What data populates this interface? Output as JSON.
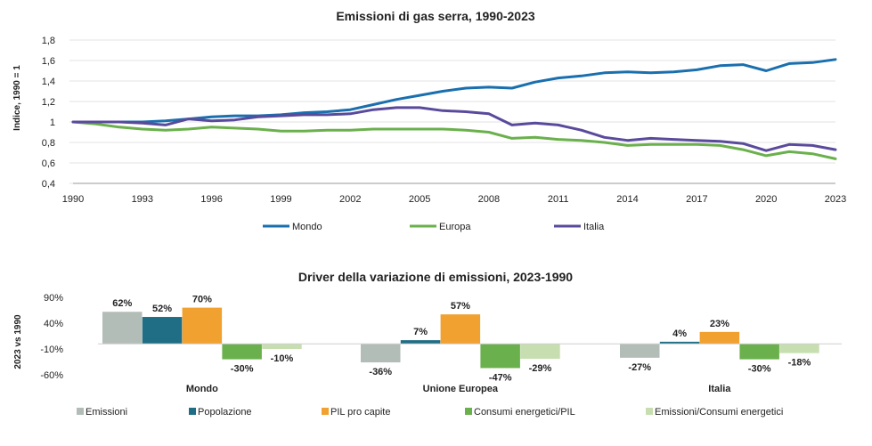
{
  "chart_data": [
    {
      "type": "line",
      "title": "Emissioni di gas serra, 1990-2023",
      "ylabel": "Indice, 1990 = 1",
      "xlabel": "",
      "ylim": [
        0.4,
        1.8
      ],
      "yticks": [
        "0,4",
        "0,6",
        "0,8",
        "1",
        "1,2",
        "1,4",
        "1,6",
        "1,8"
      ],
      "ytick_values": [
        0.4,
        0.6,
        0.8,
        1.0,
        1.2,
        1.4,
        1.6,
        1.8
      ],
      "xticks": [
        "1990",
        "1993",
        "1996",
        "1999",
        "2002",
        "2005",
        "2008",
        "2011",
        "2014",
        "2017",
        "2020",
        "2023"
      ],
      "x": [
        1990,
        1991,
        1992,
        1993,
        1994,
        1995,
        1996,
        1997,
        1998,
        1999,
        2000,
        2001,
        2002,
        2003,
        2004,
        2005,
        2006,
        2007,
        2008,
        2009,
        2010,
        2011,
        2012,
        2013,
        2014,
        2015,
        2016,
        2017,
        2018,
        2019,
        2020,
        2021,
        2022,
        2023
      ],
      "series": [
        {
          "name": "Mondo",
          "color": "#1a6fae",
          "values": [
            1.0,
            1.0,
            1.0,
            1.0,
            1.01,
            1.03,
            1.05,
            1.06,
            1.06,
            1.07,
            1.09,
            1.1,
            1.12,
            1.17,
            1.22,
            1.26,
            1.3,
            1.33,
            1.34,
            1.33,
            1.39,
            1.43,
            1.45,
            1.48,
            1.49,
            1.48,
            1.49,
            1.51,
            1.55,
            1.56,
            1.5,
            1.57,
            1.58,
            1.61
          ]
        },
        {
          "name": "Europa",
          "color": "#6ab04c",
          "values": [
            1.0,
            0.98,
            0.95,
            0.93,
            0.92,
            0.93,
            0.95,
            0.94,
            0.93,
            0.91,
            0.91,
            0.92,
            0.92,
            0.93,
            0.93,
            0.93,
            0.93,
            0.92,
            0.9,
            0.84,
            0.85,
            0.83,
            0.82,
            0.8,
            0.77,
            0.78,
            0.78,
            0.78,
            0.77,
            0.73,
            0.67,
            0.71,
            0.69,
            0.64
          ]
        },
        {
          "name": "Italia",
          "color": "#5a4a9c",
          "values": [
            1.0,
            1.0,
            1.0,
            0.99,
            0.97,
            1.03,
            1.01,
            1.02,
            1.05,
            1.06,
            1.07,
            1.07,
            1.08,
            1.12,
            1.14,
            1.14,
            1.11,
            1.1,
            1.08,
            0.97,
            0.99,
            0.97,
            0.92,
            0.85,
            0.82,
            0.84,
            0.83,
            0.82,
            0.81,
            0.79,
            0.72,
            0.78,
            0.77,
            0.73
          ]
        }
      ],
      "legend": "bottom"
    },
    {
      "type": "bar",
      "title": "Driver della variazione di emissioni, 2023-1990",
      "ylabel": "2023 vs 1990",
      "ylim": [
        -60,
        90
      ],
      "yticks": [
        "90%",
        "40%",
        "-10%",
        "-60%"
      ],
      "ytick_values": [
        90,
        40,
        -10,
        -60
      ],
      "categories": [
        "Mondo",
        "Unione Europea",
        "Italia"
      ],
      "series": [
        {
          "name": "Emissioni",
          "color": "#b3bdb7",
          "values": [
            62,
            -36,
            -27
          ],
          "labels": [
            "62%",
            "-36%",
            "-27%"
          ]
        },
        {
          "name": "Popolazione",
          "color": "#1f6e85",
          "values": [
            52,
            7,
            4
          ],
          "labels": [
            "52%",
            "7%",
            "4%"
          ]
        },
        {
          "name": "PIL pro capite",
          "color": "#f0a12f",
          "values": [
            70,
            57,
            23
          ],
          "labels": [
            "70%",
            "57%",
            "23%"
          ]
        },
        {
          "name": "Consumi energetici/PIL",
          "color": "#6ab04c",
          "values": [
            -30,
            -47,
            -30
          ],
          "labels": [
            "-30%",
            "-47%",
            "-30%"
          ]
        },
        {
          "name": "Emissioni/Consumi energetici",
          "color": "#c7dfb0",
          "values": [
            -10,
            -29,
            -18
          ],
          "labels": [
            "-10%",
            "-29%",
            "-18%"
          ]
        }
      ],
      "legend": "bottom"
    }
  ]
}
